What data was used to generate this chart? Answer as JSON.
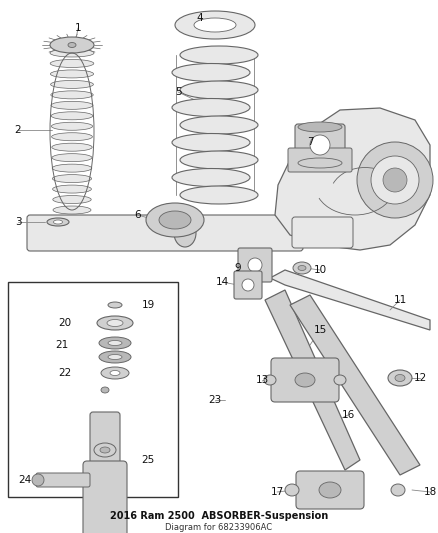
{
  "title": "2016 Ram 2500  ABSORBER-Suspension",
  "subtitle": "Diagram for 68233906AC",
  "bg_color": "#ffffff",
  "lc": "#666666",
  "fc_light": "#e8e8e8",
  "fc_mid": "#d0d0d0",
  "fc_dark": "#b8b8b8",
  "figsize": [
    4.38,
    5.33
  ],
  "dpi": 100,
  "label_fs": 7.5,
  "title_fs": 7.0
}
